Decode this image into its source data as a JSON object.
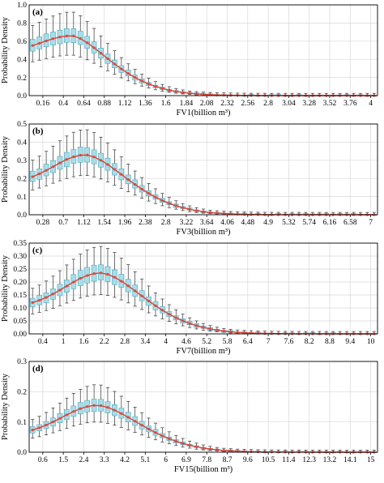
{
  "colors": {
    "box_fill": "#a9dde8",
    "box_stroke": "#4aa9bd",
    "median": "#9a9a9a",
    "whisker": "#333333",
    "density_line": "#d9453a",
    "density_marker": "#e0463c",
    "grid": "#d8d8d8"
  },
  "chart_data": [
    {
      "type": "box",
      "panel_label": "(a)",
      "xlabel": "FV1(billion m³)",
      "ylabel": "Probability Density",
      "xlim": [
        0,
        4.08
      ],
      "ylim": [
        0,
        1.0
      ],
      "yticks": [
        "0.0",
        "0.2",
        "0.4",
        "0.6",
        "0.8",
        "1.0"
      ],
      "xticks": [
        "0.16",
        "0.4",
        "0.64",
        "0.88",
        "1.12",
        "1.36",
        "1.6",
        "1.84",
        "2.08",
        "2.32",
        "2.56",
        "2.8",
        "3.04",
        "3.28",
        "3.52",
        "3.76",
        "4"
      ],
      "grid": true,
      "x_start": 0.04,
      "x_step": 0.08,
      "n_boxes": 51,
      "peak_x": 0.5,
      "peak_y": 0.66,
      "rise_width": 0.55,
      "decay_width": 0.62,
      "decay_power": 1.6,
      "y0": 0.47,
      "spread": 0.3
    },
    {
      "type": "box",
      "panel_label": "(b)",
      "xlabel": "FV3(billion m³)",
      "ylabel": "Probability Density",
      "xlim": [
        0,
        7.14
      ],
      "ylim": [
        0,
        0.5
      ],
      "yticks": [
        "0.0",
        "0.1",
        "0.2",
        "0.3",
        "0.4",
        "0.5"
      ],
      "xticks": [
        "0.28",
        "0.7",
        "1.12",
        "1.54",
        "1.96",
        "2.38",
        "2.8",
        "3.22",
        "3.64",
        "4.06",
        "4.48",
        "4.9",
        "5.32",
        "5.74",
        "6.16",
        "6.58",
        "7"
      ],
      "grid": true,
      "x_start": 0.07,
      "x_step": 0.14,
      "n_boxes": 51,
      "peak_x": 1.15,
      "peak_y": 0.33,
      "rise_width": 1.0,
      "decay_width": 1.2,
      "decay_power": 1.7,
      "y0": 0.17,
      "spread": 0.32
    },
    {
      "type": "box",
      "panel_label": "(c)",
      "xlabel": "FV7(billion m³)",
      "ylabel": "Probability Density",
      "xlim": [
        0,
        10.2
      ],
      "ylim": [
        0,
        0.35
      ],
      "yticks": [
        "0.00",
        "0.05",
        "0.10",
        "0.15",
        "0.20",
        "0.25",
        "0.30",
        "0.35"
      ],
      "xticks": [
        "0.4",
        "1",
        "1.6",
        "2.2",
        "2.8",
        "3.4",
        "4",
        "4.6",
        "5.2",
        "5.8",
        "6.4",
        "7",
        "7.6",
        "8.2",
        "8.8",
        "9.4",
        "10"
      ],
      "grid": true,
      "x_start": 0.1,
      "x_step": 0.2,
      "n_boxes": 51,
      "peak_x": 2.1,
      "peak_y": 0.235,
      "rise_width": 1.6,
      "decay_width": 1.75,
      "decay_power": 1.7,
      "y0": 0.1,
      "spread": 0.33
    },
    {
      "type": "box",
      "panel_label": "(d)",
      "xlabel": "FV15(billion m³)",
      "ylabel": "Probability Density",
      "xlim": [
        0,
        15.3
      ],
      "ylim": [
        0,
        0.3
      ],
      "yticks": [
        "0.0",
        "0.1",
        "0.2",
        "0.3"
      ],
      "xticks": [
        "0.6",
        "1.5",
        "2.4",
        "3.3",
        "4.2",
        "5.1",
        "6",
        "6.9",
        "7.8",
        "8.7",
        "9.6",
        "10.5",
        "11.4",
        "12.3",
        "13.2",
        "14.1",
        "15"
      ],
      "grid": true,
      "x_start": 0.15,
      "x_step": 0.3,
      "n_boxes": 51,
      "peak_x": 3.0,
      "peak_y": 0.155,
      "rise_width": 2.4,
      "decay_width": 2.6,
      "decay_power": 1.7,
      "y0": 0.055,
      "spread": 0.33
    }
  ]
}
